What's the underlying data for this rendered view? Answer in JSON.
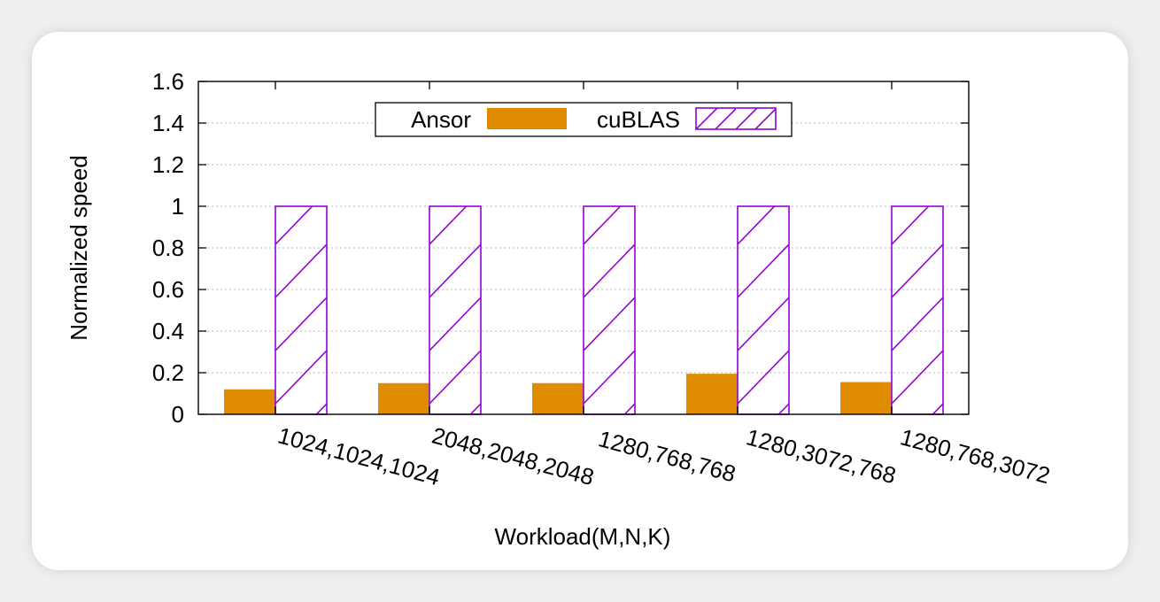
{
  "chart_data": {
    "type": "bar",
    "title": "",
    "xlabel": "Workload(M,N,K)",
    "ylabel": "Normalized speed",
    "ylim": [
      0,
      1.6
    ],
    "yticks": [
      0,
      0.2,
      0.4,
      0.6,
      0.8,
      1,
      1.2,
      1.4,
      1.6
    ],
    "grid": true,
    "legend": "top-center",
    "categories": [
      "1024,1024,1024",
      "2048,2048,2048",
      "1280,768,768",
      "1280,3072,768",
      "1280,768,3072"
    ],
    "series": [
      {
        "name": "Ansor",
        "values": [
          0.12,
          0.15,
          0.15,
          0.195,
          0.155
        ],
        "color": "#e08c00",
        "pattern": "solid"
      },
      {
        "name": "cuBLAS",
        "values": [
          1,
          1,
          1,
          1,
          1
        ],
        "color": "#9400d3",
        "pattern": "hatch"
      }
    ]
  }
}
